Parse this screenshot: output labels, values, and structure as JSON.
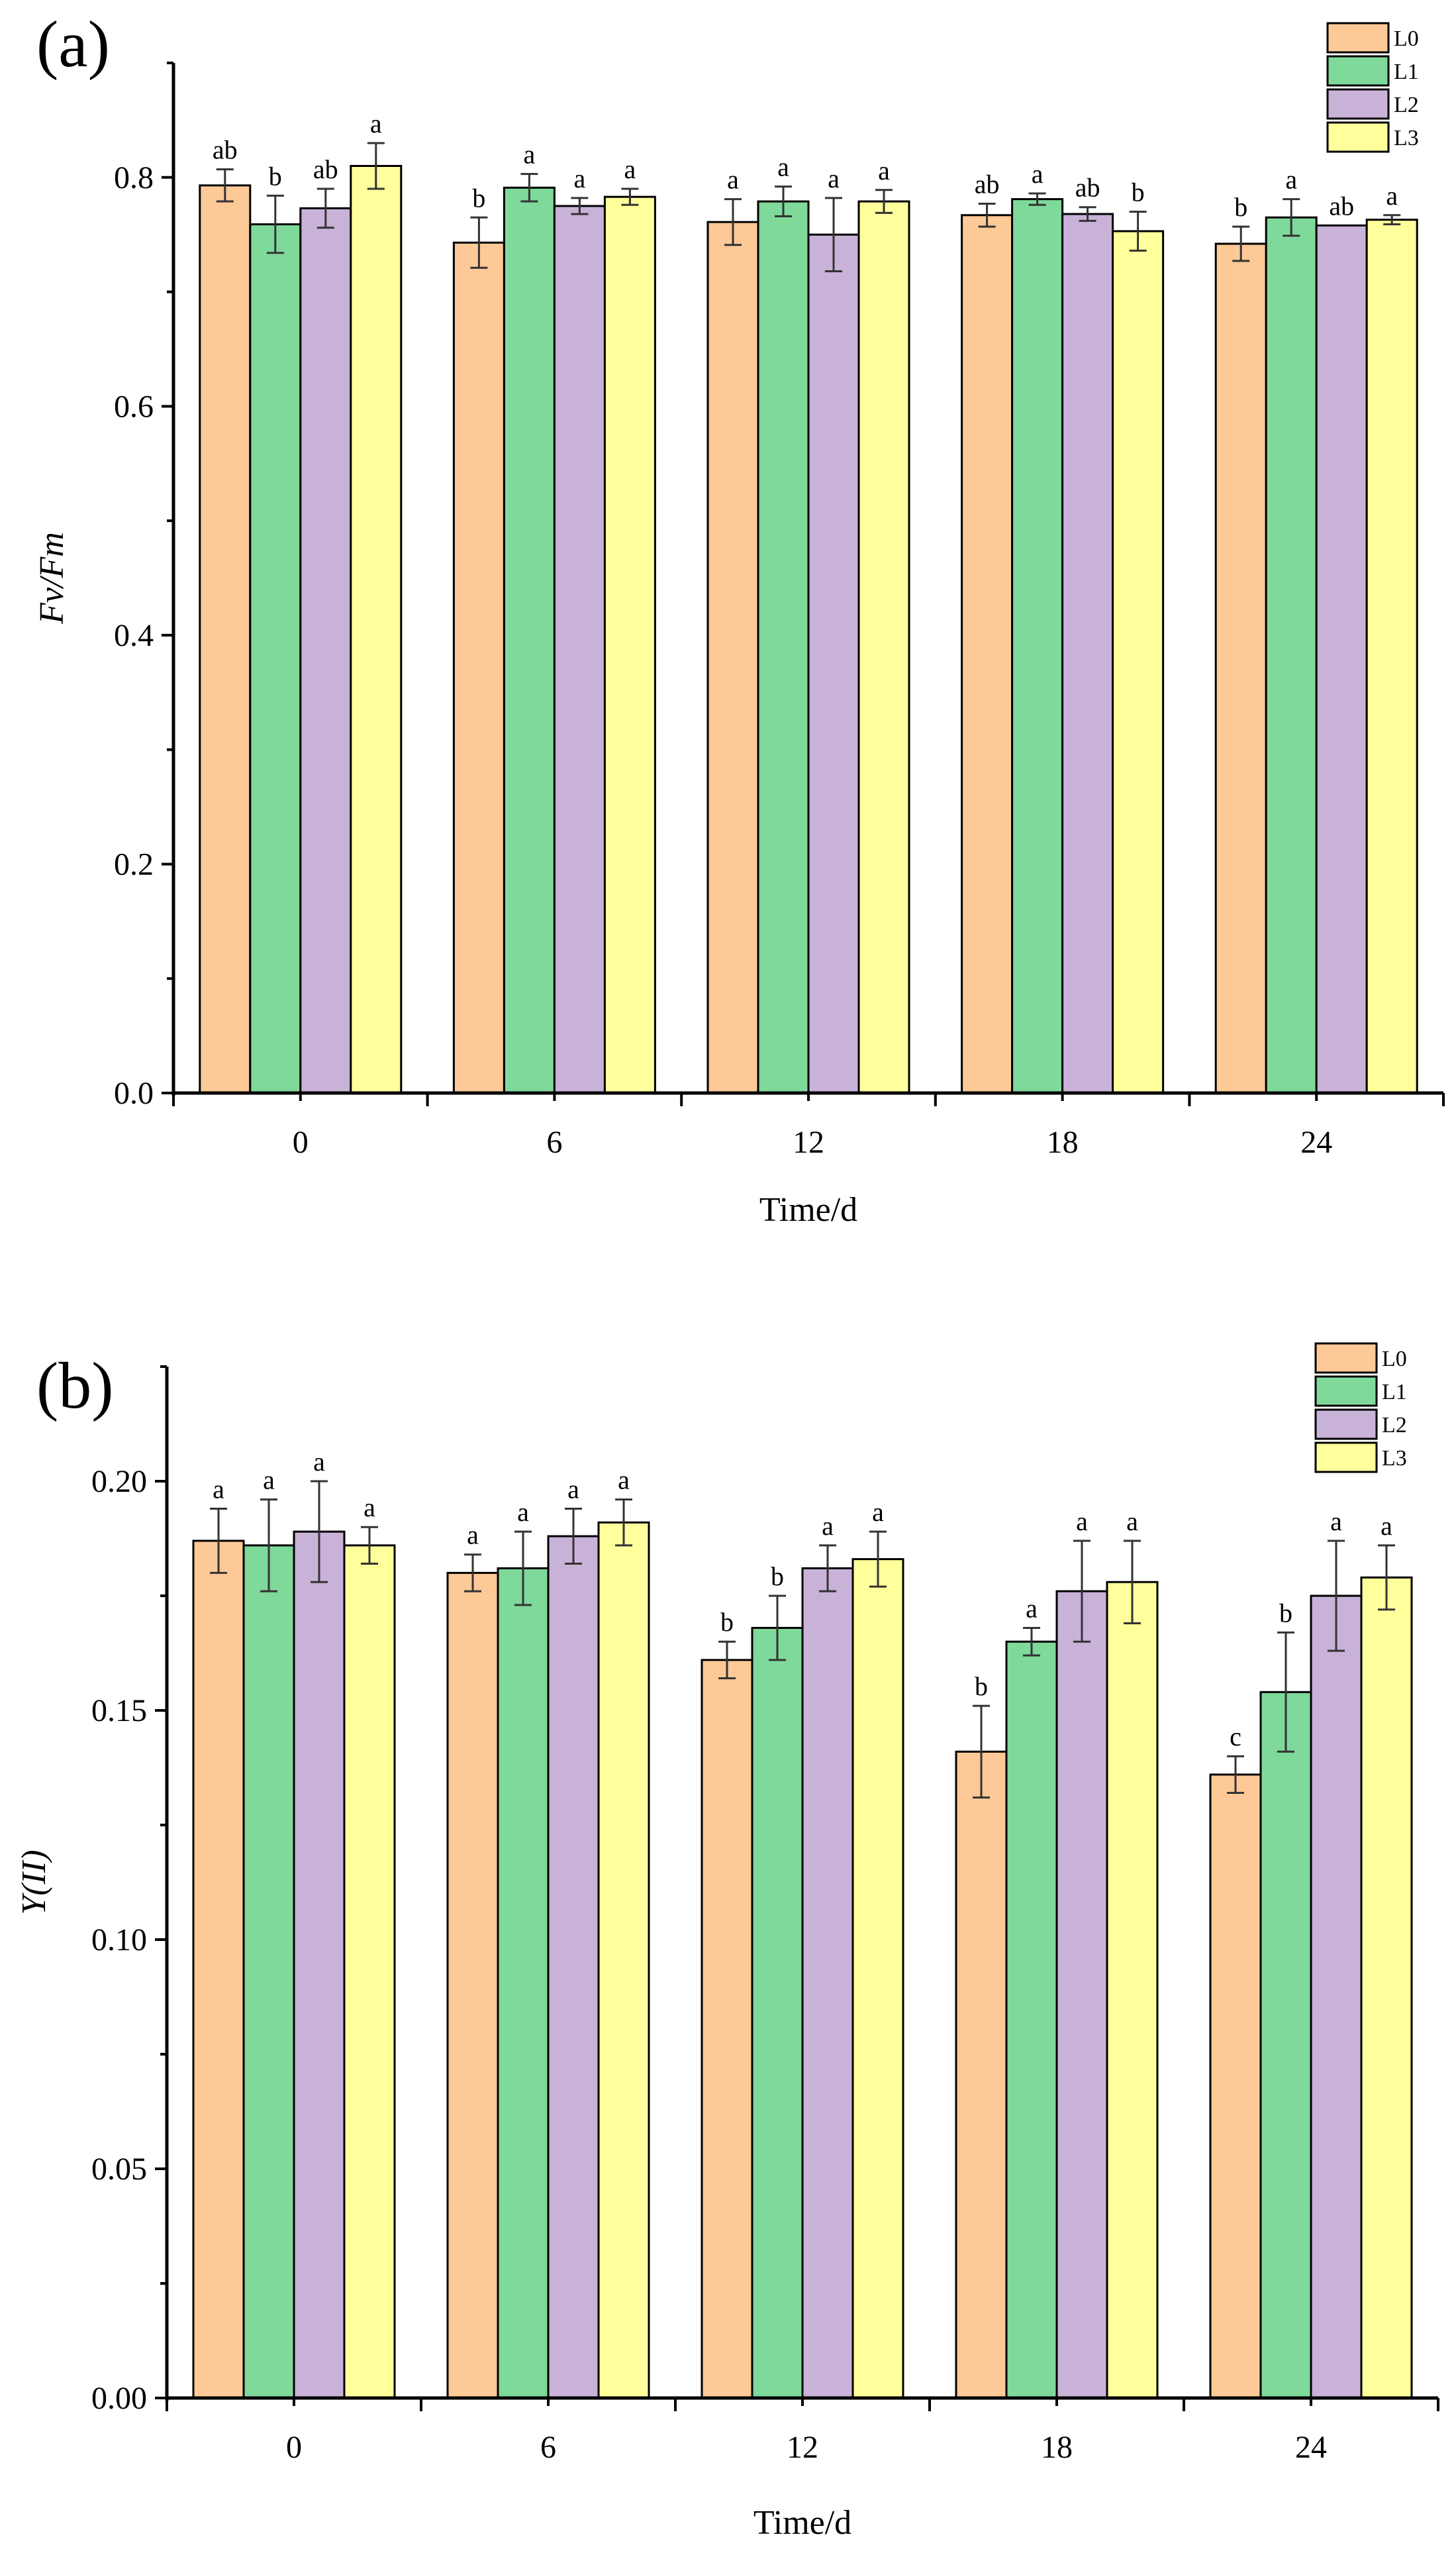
{
  "chart_data": [
    {
      "type": "bar",
      "panel_label": "(a)",
      "title": "",
      "xlabel": "Time/d",
      "ylabel": "Fv/Fm",
      "categories": [
        "0",
        "6",
        "12",
        "18",
        "24"
      ],
      "ylim": [
        0,
        0.9
      ],
      "yticks": [
        0.0,
        0.2,
        0.4,
        0.6,
        0.8
      ],
      "ytick_labels": [
        "0.0",
        "0.2",
        "0.4",
        "0.6",
        "0.8"
      ],
      "legend_position": "top-right",
      "series": [
        {
          "name": "L0",
          "color": "#FDC997",
          "values": [
            0.793,
            0.743,
            0.761,
            0.767,
            0.742
          ],
          "errors": [
            0.014,
            0.022,
            0.02,
            0.01,
            0.015
          ],
          "labels": [
            "ab",
            "b",
            "a",
            "ab",
            "b"
          ]
        },
        {
          "name": "L1",
          "color": "#7FD99A",
          "values": [
            0.759,
            0.791,
            0.779,
            0.781,
            0.765
          ],
          "errors": [
            0.025,
            0.012,
            0.013,
            0.005,
            0.016
          ],
          "labels": [
            "b",
            "a",
            "a",
            "a",
            "a"
          ]
        },
        {
          "name": "L2",
          "color": "#C9B2D8",
          "values": [
            0.773,
            0.775,
            0.75,
            0.768,
            0.758
          ],
          "errors": [
            0.017,
            0.007,
            0.032,
            0.006,
            0.0
          ],
          "labels": [
            "ab",
            "a",
            "a",
            "ab",
            "ab"
          ]
        },
        {
          "name": "L3",
          "color": "#FFFF9C",
          "values": [
            0.81,
            0.783,
            0.779,
            0.753,
            0.763
          ],
          "errors": [
            0.02,
            0.007,
            0.01,
            0.017,
            0.004
          ],
          "labels": [
            "a",
            "a",
            "a",
            "b",
            "a"
          ]
        }
      ]
    },
    {
      "type": "bar",
      "panel_label": "(b)",
      "title": "",
      "xlabel": "Time/d",
      "ylabel": "Y(II)",
      "categories": [
        "0",
        "6",
        "12",
        "18",
        "24"
      ],
      "ylim": [
        0,
        0.225
      ],
      "yticks": [
        0.0,
        0.05,
        0.1,
        0.15,
        0.2
      ],
      "ytick_labels": [
        "0.00",
        "0.05",
        "0.10",
        "0.15",
        "0.20"
      ],
      "legend_position": "top-right",
      "series": [
        {
          "name": "L0",
          "color": "#FDC997",
          "values": [
            0.187,
            0.18,
            0.161,
            0.141,
            0.136
          ],
          "errors": [
            0.007,
            0.004,
            0.004,
            0.01,
            0.004
          ],
          "labels": [
            "a",
            "a",
            "b",
            "b",
            "c"
          ]
        },
        {
          "name": "L1",
          "color": "#7FD99A",
          "values": [
            0.186,
            0.181,
            0.168,
            0.165,
            0.154
          ],
          "errors": [
            0.01,
            0.008,
            0.007,
            0.003,
            0.013
          ],
          "labels": [
            "a",
            "a",
            "b",
            "a",
            "b"
          ]
        },
        {
          "name": "L2",
          "color": "#C9B2D8",
          "values": [
            0.189,
            0.188,
            0.181,
            0.176,
            0.175
          ],
          "errors": [
            0.011,
            0.006,
            0.005,
            0.011,
            0.012
          ],
          "labels": [
            "a",
            "a",
            "a",
            "a",
            "a"
          ]
        },
        {
          "name": "L3",
          "color": "#FFFF9C",
          "values": [
            0.186,
            0.191,
            0.183,
            0.178,
            0.179
          ],
          "errors": [
            0.004,
            0.005,
            0.006,
            0.009,
            0.007
          ],
          "labels": [
            "a",
            "a",
            "a",
            "a",
            "a"
          ]
        }
      ]
    }
  ]
}
